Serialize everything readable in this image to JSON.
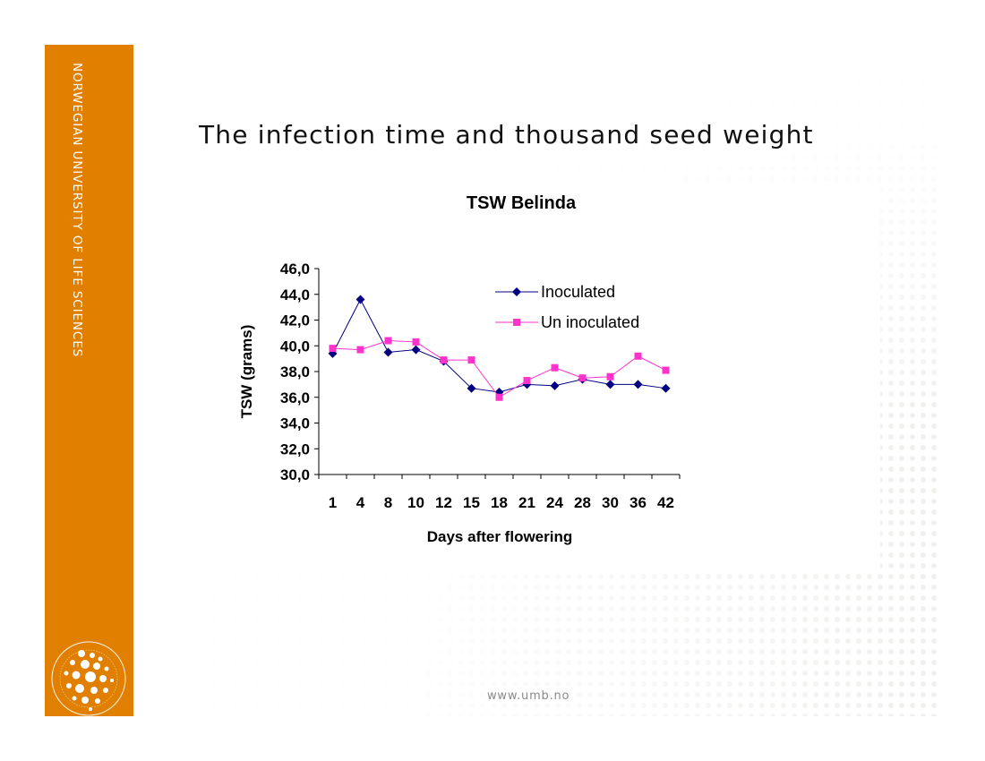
{
  "sidebar": {
    "university_name": "NORWEGIAN UNIVERSITY OF LIFE SCIENCES"
  },
  "slide": {
    "title": "The infection time and thousand seed weight"
  },
  "footer": {
    "url": "www.umb.no"
  },
  "colors": {
    "accent": "#e07f00",
    "inoculated": "#000080",
    "uninoculated": "#ff33cc"
  },
  "icons": {
    "logo": "university-seal-icon"
  },
  "chart_data": {
    "type": "line",
    "title": "TSW Belinda",
    "xlabel": "Days after flowering",
    "ylabel": "TSW (grams)",
    "categories": [
      "1",
      "4",
      "8",
      "10",
      "12",
      "15",
      "18",
      "21",
      "24",
      "28",
      "30",
      "36",
      "42"
    ],
    "ylim": [
      30,
      46
    ],
    "yticks": [
      "30,0",
      "32,0",
      "34,0",
      "36,0",
      "38,0",
      "40,0",
      "42,0",
      "44,0",
      "46,0"
    ],
    "grid": false,
    "legend_position": "top-right",
    "series": [
      {
        "name": "Inoculated",
        "marker": "diamond",
        "color": "#000080",
        "values": [
          39.4,
          43.6,
          39.5,
          39.7,
          38.8,
          36.7,
          36.4,
          37.0,
          36.9,
          37.4,
          37.0,
          37.0,
          36.7
        ]
      },
      {
        "name": "Un inoculated",
        "marker": "square",
        "color": "#ff33cc",
        "values": [
          39.8,
          39.7,
          40.4,
          40.3,
          38.9,
          38.9,
          36.0,
          37.3,
          38.3,
          37.5,
          37.6,
          39.2,
          38.1
        ]
      }
    ]
  }
}
